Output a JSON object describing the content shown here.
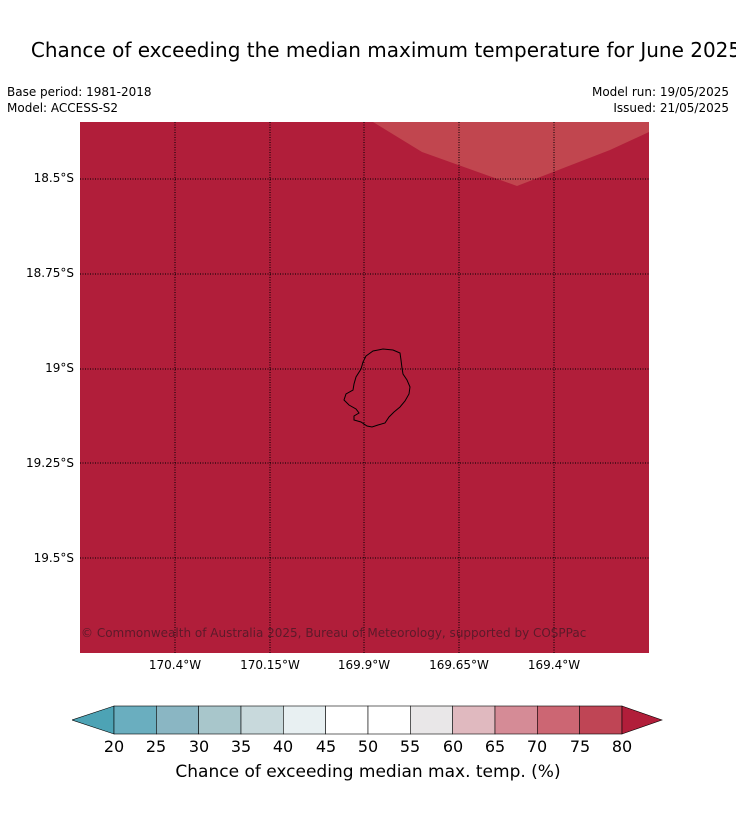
{
  "title": "Chance of exceeding the median maximum temperature for June 2025",
  "meta": {
    "base_period": "Base period: 1981-2018",
    "model": "Model: ACCESS-S2",
    "model_run": "Model run: 19/05/2025",
    "issued": "Issued: 21/05/2025"
  },
  "map": {
    "credit": "© Commonwealth of Australia 2025, Bureau of Meteorology, supported by COSPPac",
    "fill_color": "#b11e3a",
    "region_color": "#c1464f",
    "lat_labels": [
      "18.5°S",
      "18.75°S",
      "19°S",
      "19.25°S",
      "19.5°S"
    ],
    "lon_labels": [
      "170.4°W",
      "170.15°W",
      "169.9°W",
      "169.65°W",
      "169.4°W"
    ]
  },
  "colorbar": {
    "label": "Chance of exceeding median max. temp. (%)",
    "ticks": [
      "20",
      "25",
      "30",
      "35",
      "40",
      "45",
      "50",
      "55",
      "60",
      "65",
      "70",
      "75",
      "80"
    ],
    "colors": [
      "#4da3b5",
      "#6aaebf",
      "#8ab6c3",
      "#a8c6cb",
      "#c8d9dc",
      "#e8f0f2",
      "#ffffff",
      "#ffffff",
      "#e9e7e8",
      "#e0b9bf",
      "#d58b96",
      "#cc6673",
      "#bf4555",
      "#b11e3a"
    ]
  }
}
